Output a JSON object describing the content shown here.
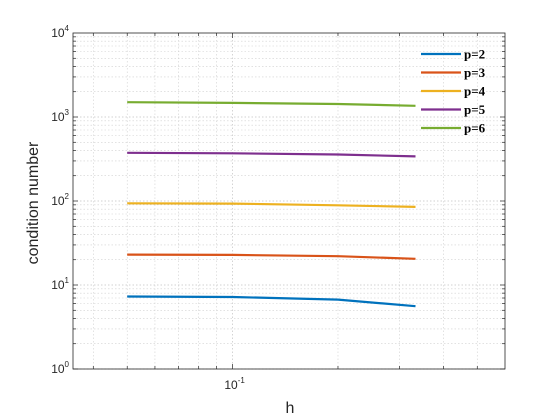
{
  "chart_data": {
    "type": "line",
    "xscale": "log",
    "yscale": "log",
    "xlim": [
      0.035,
      0.6
    ],
    "ylim": [
      1,
      10000
    ],
    "xlabel": "h",
    "ylabel": "condition number",
    "grid": true,
    "legend_position": "top-right",
    "x_ticks": [
      {
        "value": 0.1,
        "base": "10",
        "exp": "-1"
      }
    ],
    "y_ticks": [
      {
        "value": 1,
        "base": "10",
        "exp": "0"
      },
      {
        "value": 10,
        "base": "10",
        "exp": "1"
      },
      {
        "value": 100,
        "base": "10",
        "exp": "2"
      },
      {
        "value": 1000,
        "base": "10",
        "exp": "3"
      },
      {
        "value": 10000,
        "base": "10",
        "exp": "4"
      }
    ],
    "x": [
      0.05,
      0.1,
      0.2,
      0.333
    ],
    "series": [
      {
        "name": "p=2",
        "color": "#0072BD",
        "values": [
          7.3,
          7.2,
          6.7,
          5.6
        ]
      },
      {
        "name": "p=3",
        "color": "#D95319",
        "values": [
          23,
          22.8,
          22,
          20.5
        ]
      },
      {
        "name": "p=4",
        "color": "#EDB120",
        "values": [
          94,
          93,
          89,
          85
        ]
      },
      {
        "name": "p=5",
        "color": "#7E2F8E",
        "values": [
          375,
          370,
          358,
          340
        ]
      },
      {
        "name": "p=6",
        "color": "#77AC30",
        "values": [
          1500,
          1470,
          1430,
          1360
        ]
      }
    ]
  }
}
